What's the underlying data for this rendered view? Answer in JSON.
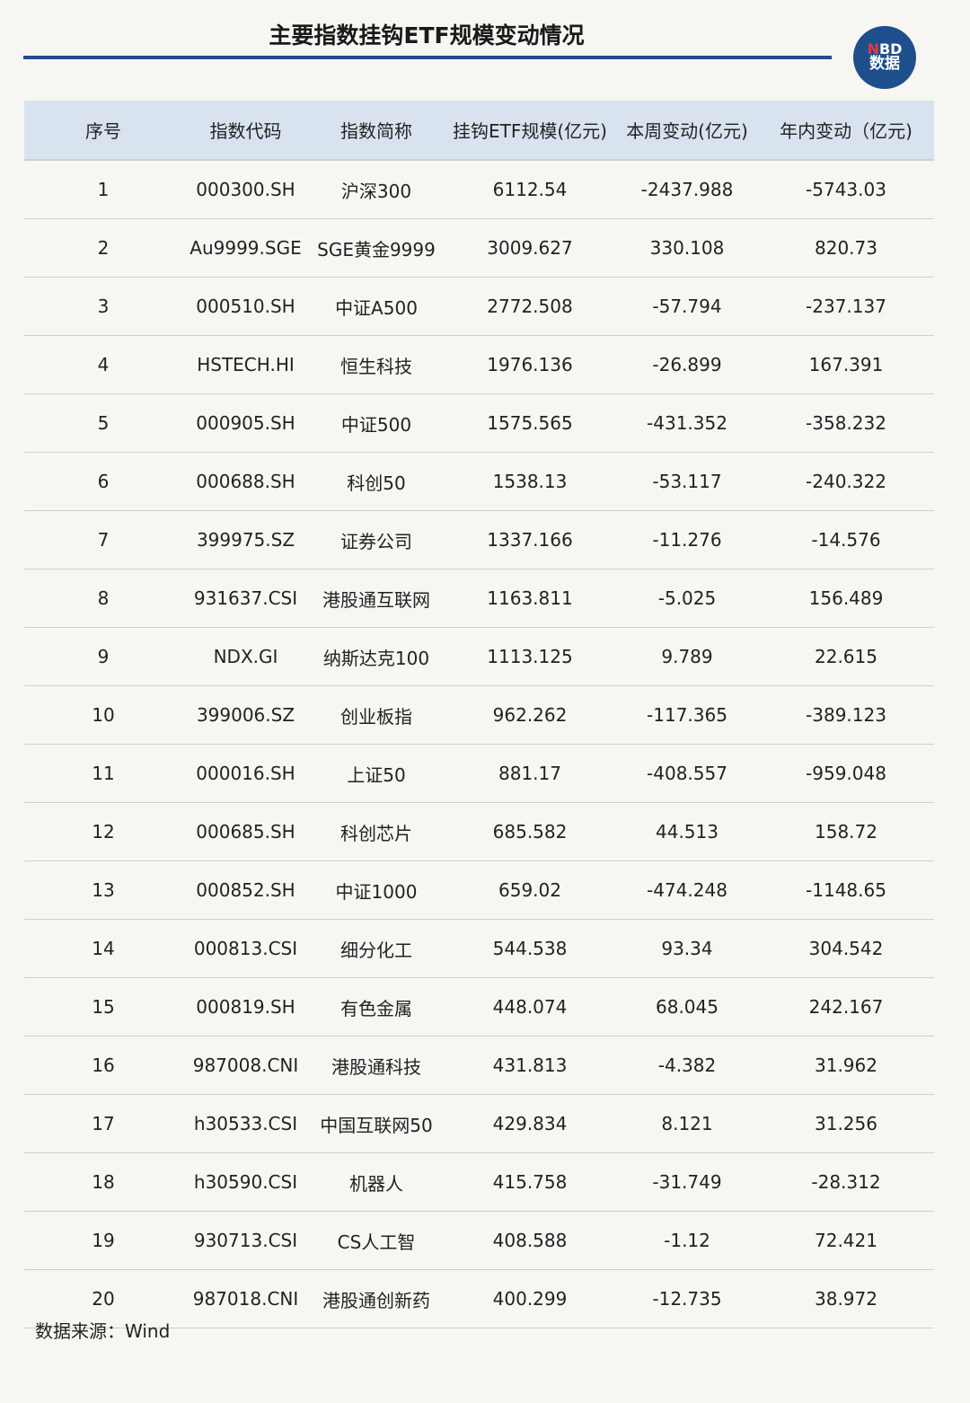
{
  "title": "主要指数挂钩ETF规模变动情况",
  "logo": {
    "line1_accent": "N",
    "line1_rest": "BD",
    "line2": "数据"
  },
  "colors": {
    "accent": "#1f4e8c",
    "header_bg": "#d9e3ef",
    "background": "#f8f6f3",
    "logo_n": "#e23b3b"
  },
  "source": "数据来源：Wind",
  "chart_data": {
    "type": "table",
    "title": "主要指数挂钩ETF规模变动情况",
    "columns": [
      "序号",
      "指数代码",
      "指数简称",
      "挂钩ETF规模(亿元)",
      "本周变动(亿元)",
      "年内变动（亿元)"
    ],
    "rows": [
      [
        "1",
        "000300.SH",
        "沪深300",
        "6112.54",
        "-2437.988",
        "-5743.03"
      ],
      [
        "2",
        "Au9999.SGE",
        "SGE黄金9999",
        "3009.627",
        "330.108",
        "820.73"
      ],
      [
        "3",
        "000510.SH",
        "中证A500",
        "2772.508",
        "-57.794",
        "-237.137"
      ],
      [
        "4",
        "HSTECH.HI",
        "恒生科技",
        "1976.136",
        "-26.899",
        "167.391"
      ],
      [
        "5",
        "000905.SH",
        "中证500",
        "1575.565",
        "-431.352",
        "-358.232"
      ],
      [
        "6",
        "000688.SH",
        "科创50",
        "1538.13",
        "-53.117",
        "-240.322"
      ],
      [
        "7",
        "399975.SZ",
        "证券公司",
        "1337.166",
        "-11.276",
        "-14.576"
      ],
      [
        "8",
        "931637.CSI",
        "港股通互联网",
        "1163.811",
        "-5.025",
        "156.489"
      ],
      [
        "9",
        "NDX.GI",
        "纳斯达克100",
        "1113.125",
        "9.789",
        "22.615"
      ],
      [
        "10",
        "399006.SZ",
        "创业板指",
        "962.262",
        "-117.365",
        "-389.123"
      ],
      [
        "11",
        "000016.SH",
        "上证50",
        "881.17",
        "-408.557",
        "-959.048"
      ],
      [
        "12",
        "000685.SH",
        "科创芯片",
        "685.582",
        "44.513",
        "158.72"
      ],
      [
        "13",
        "000852.SH",
        "中证1000",
        "659.02",
        "-474.248",
        "-1148.65"
      ],
      [
        "14",
        "000813.CSI",
        "细分化工",
        "544.538",
        "93.34",
        "304.542"
      ],
      [
        "15",
        "000819.SH",
        "有色金属",
        "448.074",
        "68.045",
        "242.167"
      ],
      [
        "16",
        "987008.CNI",
        "港股通科技",
        "431.813",
        "-4.382",
        "31.962"
      ],
      [
        "17",
        "h30533.CSI",
        "中国互联网50",
        "429.834",
        "8.121",
        "31.256"
      ],
      [
        "18",
        "h30590.CSI",
        "机器人",
        "415.758",
        "-31.749",
        "-28.312"
      ],
      [
        "19",
        "930713.CSI",
        "CS人工智",
        "408.588",
        "-1.12",
        "72.421"
      ],
      [
        "20",
        "987018.CNI",
        "港股通创新药",
        "400.299",
        "-12.735",
        "38.972"
      ]
    ]
  }
}
